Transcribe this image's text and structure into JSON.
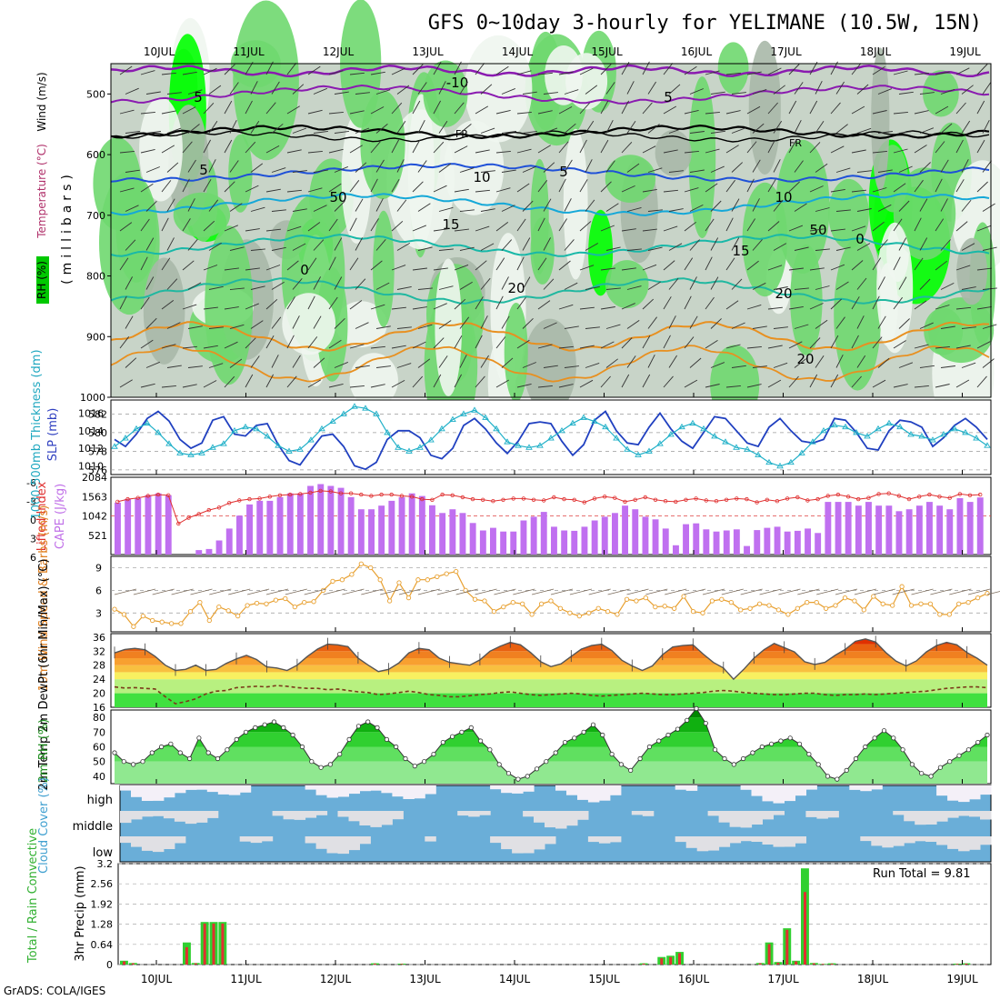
{
  "header": {
    "title": "GFS 0~10day 3-hourly for YELIMANE (10.5W, 15N)",
    "credit": "GrADS: COLA/IGES",
    "run_total_label": "Run Total = 9.81"
  },
  "chart_data": [
    {
      "id": "upper",
      "type": "heatmap",
      "days": [
        "10JUL",
        "11JUL",
        "12JUL",
        "13JUL",
        "14JUL",
        "15JUL",
        "16JUL",
        "17JUL",
        "18JUL",
        "19JUL"
      ],
      "ylabel_main": "(millibars)",
      "ylabel_wind": "Wind (m/s)",
      "ylabel_temp": "Temperature (°C)",
      "ylabel_rh": "RH (%)",
      "yticks": [
        500,
        600,
        700,
        800,
        900,
        1000
      ],
      "ylim": [
        1000,
        450
      ],
      "contour_labels": [
        "5",
        "-10",
        "5",
        "FR",
        "FR",
        "5",
        "5",
        "10",
        "10",
        "15",
        "15",
        "0",
        "0",
        "20",
        "20",
        "20",
        "50",
        "50"
      ],
      "colors": {
        "rh_dry": "#ffffff",
        "rh_mid": "#c8d4c8",
        "rh_moist": "#6fd86f",
        "rh_wet": "#00ff00",
        "purple": "#8a1ab0",
        "blue": "#1e50d8",
        "cyan": "#15a8d8",
        "teal": "#18b8a8",
        "orange": "#e89020"
      }
    },
    {
      "id": "slp",
      "type": "line",
      "ylabel_left": "1000-500mb Thickness (dm)",
      "ylabel_right": "SLP (mb)",
      "yticks_left": [
        "582",
        "580",
        "578",
        "576"
      ],
      "yticks_right": [
        "1016",
        "1014",
        "1012",
        "1010"
      ],
      "ylim_left": [
        575.5,
        583.5
      ],
      "ylim_right": [
        1009,
        1017.5
      ],
      "series": [
        {
          "values": [
            1013.0,
            1012.2,
            1013.6,
            1015.4,
            1016.2,
            1015.1,
            1013.0,
            1012.0,
            1012.6,
            1015.2,
            1015.6,
            1013.6,
            1013.4,
            1014.6,
            1014.8,
            1012.4,
            1010.6,
            1010.1,
            1011.8,
            1013.4,
            1013.6,
            1012.2,
            1010.0,
            1009.6,
            1010.4,
            1013.0,
            1014.0,
            1014.0,
            1013.2,
            1011.2,
            1010.8,
            1012.0,
            1014.6,
            1015.4,
            1014.2,
            1012.6,
            1011.4,
            1012.8,
            1014.8,
            1015.0,
            1014.8,
            1012.8,
            1011.2,
            1012.4,
            1015.2,
            1016.2,
            1014.0,
            1012.6,
            1012.4,
            1014.4,
            1016.0,
            1014.2,
            1012.8,
            1012.0,
            1013.8,
            1015.6,
            1015.4,
            1014.0,
            1012.6,
            1012.2,
            1014.4,
            1015.4,
            1014.0,
            1012.8,
            1012.6,
            1013.0,
            1015.4,
            1015.2,
            1013.8,
            1012.0,
            1011.8,
            1014.0,
            1015.2,
            1015.0,
            1014.4,
            1012.2,
            1013.2,
            1014.6,
            1015.4,
            1014.4,
            1013.0
          ]
        },
        {
          "values": [
            578.5,
            579.4,
            580.4,
            581.0,
            580.0,
            578.8,
            577.8,
            577.6,
            577.8,
            578.4,
            578.8,
            580.2,
            580.6,
            580.4,
            579.6,
            578.6,
            578.0,
            578.2,
            579.2,
            580.4,
            581.2,
            582.0,
            582.8,
            582.6,
            582.0,
            580.0,
            578.4,
            578.0,
            578.4,
            579.2,
            580.4,
            581.4,
            582.0,
            582.4,
            581.6,
            580.4,
            579.0,
            578.6,
            578.4,
            578.6,
            579.4,
            580.2,
            581.0,
            581.6,
            581.2,
            580.6,
            579.4,
            578.2,
            577.6,
            578.0,
            578.8,
            579.8,
            580.6,
            581.0,
            580.4,
            579.6,
            579.0,
            578.4,
            578.2,
            577.6,
            576.8,
            576.4,
            576.8,
            577.8,
            579.0,
            580.2,
            580.8,
            580.6,
            580.0,
            579.6,
            580.4,
            581.0,
            580.6,
            579.8,
            579.6,
            579.2,
            579.8,
            580.4,
            580.0,
            579.4,
            578.6
          ]
        }
      ]
    },
    {
      "id": "cape",
      "type": "bar",
      "ylabel_left": "Lifted Index",
      "ylabel_right": "CAPE (J/kg)",
      "yticks_left": [
        "-6",
        "-3",
        "0",
        "3",
        "6"
      ],
      "yticks_right": [
        "2084",
        "1563",
        "1042",
        "521"
      ],
      "ylim_right": [
        0,
        2084
      ],
      "series": [
        {
          "name": "CAPE",
          "values": [
            1400,
            1500,
            1520,
            1600,
            1650,
            1600,
            0,
            0,
            120,
            150,
            380,
            700,
            1050,
            1350,
            1450,
            1450,
            1550,
            1650,
            1650,
            1850,
            1900,
            1850,
            1800,
            1550,
            1220,
            1220,
            1320,
            1450,
            1550,
            1650,
            1580,
            1330,
            1120,
            1220,
            1120,
            850,
            650,
            720,
            620,
            620,
            920,
            1020,
            1150,
            750,
            650,
            640,
            750,
            920,
            1020,
            1120,
            1320,
            1220,
            1020,
            950,
            700,
            250,
            820,
            840,
            680,
            620,
            650,
            680,
            230,
            660,
            720,
            750,
            620,
            640,
            700,
            580,
            1420,
            1420,
            1420,
            1320,
            1420,
            1320,
            1320,
            1170,
            1220,
            1320,
            1420,
            1320,
            1220,
            1520,
            1420,
            1540
          ]
        },
        {
          "name": "Lifted Index",
          "values": [
            -2.2,
            -2.6,
            -2.8,
            -3.1,
            -3.3,
            -3.2,
            1.2,
            0.3,
            -0.3,
            -0.9,
            -1.3,
            -2.0,
            -2.4,
            -2.6,
            -2.7,
            -3.0,
            -3.2,
            -3.3,
            -3.4,
            -3.6,
            -3.9,
            -3.8,
            -3.5,
            -3.5,
            -3.3,
            -3.1,
            -3.3,
            -3.3,
            -3.1,
            -3.0,
            -2.6,
            -2.5,
            -3.3,
            -3.2,
            -2.9,
            -2.6,
            -2.5,
            -2.3,
            -2.5,
            -2.7,
            -2.7,
            -2.5,
            -2.4,
            -2.9,
            -2.6,
            -2.5,
            -2.1,
            -2.7,
            -3.0,
            -2.8,
            -2.2,
            -2.5,
            -2.9,
            -2.5,
            -2.3,
            -2.2,
            -2.5,
            -2.7,
            -2.4,
            -2.3,
            -2.5,
            -2.7,
            -2.6,
            -2.1,
            -2.5,
            -2.3,
            -2.7,
            -2.9,
            -2.4,
            -2.6,
            -3.1,
            -3.3,
            -3.0,
            -2.6,
            -2.8,
            -3.4,
            -3.5,
            -3.1,
            -2.6,
            -3.0,
            -3.3,
            -3.0,
            -2.8,
            -3.4,
            -3.2,
            -3.3
          ]
        }
      ]
    },
    {
      "id": "wind10m",
      "type": "line",
      "ylabel": "10m Wind Speed & Barbs (m/s)",
      "yticks": [
        "9",
        "6",
        "3"
      ],
      "ylim": [
        0.5,
        10.5
      ],
      "values": [
        3.5,
        2.8,
        1.2,
        2.6,
        2.0,
        1.8,
        1.6,
        1.6,
        3.2,
        4.4,
        2.0,
        3.8,
        3.3,
        2.6,
        4.0,
        4.3,
        4.2,
        4.7,
        4.9,
        3.8,
        4.4,
        4.5,
        6.0,
        7.2,
        7.4,
        8.1,
        9.5,
        9.0,
        7.4,
        4.6,
        7.0,
        5.0,
        7.4,
        7.4,
        7.8,
        8.2,
        8.5,
        6.0,
        4.8,
        4.6,
        3.2,
        3.8,
        4.4,
        4.2,
        2.8,
        4.2,
        4.6,
        3.6,
        3.0,
        2.6,
        3.0,
        3.6,
        3.2,
        2.8,
        4.8,
        4.6,
        5.0,
        3.8,
        3.9,
        3.6,
        5.2,
        3.2,
        3.0,
        4.6,
        4.8,
        4.4,
        3.4,
        3.6,
        4.2,
        4.0,
        3.4,
        2.8,
        3.6,
        4.4,
        4.4,
        3.6,
        4.0,
        5.0,
        4.6,
        3.4,
        5.2,
        4.2,
        4.0,
        6.5,
        4.0,
        4.2,
        4.2,
        2.8,
        2.8,
        4.2,
        4.4,
        5.0,
        5.6
      ]
    },
    {
      "id": "temp2m",
      "type": "area",
      "ylabel": "2m Temp 2m DewPt (6hr Min/Max) (°C)",
      "yticks": [
        "36",
        "32",
        "28",
        "24",
        "20",
        "16"
      ],
      "ylim": [
        16,
        37
      ],
      "series": [
        {
          "name": "2m Temp",
          "values": [
            31.5,
            32.5,
            32.8,
            32.4,
            30.5,
            28.0,
            26.5,
            26.8,
            28.0,
            26.5,
            26.8,
            28.5,
            29.8,
            30.8,
            29.6,
            27.5,
            27.2,
            26.5,
            28.0,
            30.5,
            32.6,
            34.0,
            33.8,
            33.3,
            30.0,
            28.0,
            26.2,
            26.8,
            28.6,
            31.5,
            32.8,
            32.4,
            30.0,
            28.8,
            28.4,
            28.0,
            29.5,
            32.0,
            33.4,
            34.5,
            33.8,
            31.6,
            29.0,
            27.6,
            28.4,
            30.5,
            32.6,
            33.6,
            34.0,
            32.2,
            29.4,
            27.8,
            26.5,
            27.8,
            31.0,
            33.2,
            33.6,
            33.8,
            31.2,
            28.8,
            27.2,
            24.0,
            26.8,
            30.0,
            32.4,
            34.2,
            33.0,
            31.8,
            29.0,
            28.2,
            28.8,
            30.8,
            32.5,
            34.8,
            35.5,
            34.6,
            31.6,
            29.2,
            27.8,
            29.2,
            31.8,
            33.6,
            34.5,
            33.8,
            31.6,
            30.0,
            28.0
          ]
        },
        {
          "name": "2m DewPt",
          "values": [
            21.8,
            21.5,
            21.6,
            21.4,
            21.2,
            19.0,
            17.0,
            17.6,
            18.4,
            19.8,
            20.6,
            20.8,
            21.6,
            21.8,
            22.0,
            21.8,
            22.2,
            22.0,
            21.6,
            21.4,
            21.4,
            21.0,
            21.2,
            20.8,
            20.4,
            20.2,
            19.6,
            19.8,
            20.2,
            20.6,
            20.2,
            19.6,
            19.4,
            19.0,
            19.0,
            19.3,
            19.6,
            19.8,
            20.2,
            20.4,
            20.0,
            19.6,
            19.4,
            19.6,
            19.8,
            20.0,
            19.8,
            19.4,
            19.2,
            19.4,
            19.6,
            19.8,
            20.0,
            19.8,
            19.6,
            19.6,
            19.8,
            20.0,
            20.2,
            20.6,
            20.8,
            20.6,
            20.2,
            20.0,
            19.8,
            19.6,
            19.6,
            19.8,
            20.0,
            20.0,
            19.6,
            19.4,
            19.6,
            19.6,
            19.8,
            19.6,
            19.8,
            20.0,
            20.2,
            20.4,
            20.6,
            21.0,
            21.4,
            21.6,
            21.8,
            21.8,
            21.6
          ]
        }
      ]
    },
    {
      "id": "rh2m",
      "type": "area",
      "ylabel": "2m RH (%)",
      "yticks": [
        "80",
        "70",
        "60",
        "50",
        "40"
      ],
      "ylim": [
        35,
        85
      ],
      "values": [
        56,
        50,
        48,
        50,
        56,
        60,
        62,
        56,
        52,
        66,
        56,
        52,
        58,
        65,
        70,
        73,
        75,
        77,
        73,
        68,
        60,
        50,
        46,
        48,
        55,
        65,
        74,
        77,
        73,
        65,
        60,
        52,
        47,
        50,
        55,
        63,
        67,
        70,
        73,
        64,
        58,
        48,
        42,
        38,
        40,
        45,
        50,
        56,
        63,
        66,
        70,
        75,
        68,
        55,
        48,
        44,
        52,
        60,
        64,
        68,
        72,
        78,
        86,
        76,
        58,
        52,
        48,
        52,
        56,
        60,
        62,
        64,
        66,
        62,
        55,
        48,
        40,
        38,
        44,
        52,
        60,
        66,
        71,
        66,
        58,
        48,
        42,
        40,
        46,
        50,
        54,
        58,
        63,
        68
      ]
    },
    {
      "id": "cloud",
      "type": "bar",
      "ylabel": "Cloud Cover (%)",
      "levels": [
        "high",
        "middle",
        "low"
      ]
    },
    {
      "id": "precip",
      "type": "bar",
      "ylabel": "3hr Precip (mm)",
      "ylabel_side": "Total / Rain Convective",
      "yticks": [
        "3.2",
        "2.56",
        "1.92",
        "1.28",
        "0.64",
        "0"
      ],
      "ylim": [
        0,
        3.2
      ],
      "series": [
        {
          "name": "Total",
          "values": [
            0.12,
            0.05,
            0,
            0,
            0,
            0,
            0,
            0.7,
            0.05,
            1.35,
            1.35,
            1.35,
            0,
            0,
            0,
            0,
            0,
            0,
            0,
            0,
            0,
            0,
            0,
            0,
            0,
            0,
            0,
            0,
            0.04,
            0,
            0,
            0.03,
            0,
            0,
            0,
            0,
            0,
            0,
            0,
            0,
            0,
            0,
            0,
            0,
            0,
            0,
            0,
            0,
            0,
            0,
            0,
            0,
            0,
            0,
            0,
            0,
            0,
            0,
            0.04,
            0,
            0.24,
            0.28,
            0.4,
            0,
            0,
            0,
            0,
            0,
            0,
            0,
            0,
            0.05,
            0.7,
            0.08,
            1.15,
            0.12,
            3.05,
            0.05,
            0.02,
            0.04,
            0,
            0,
            0,
            0,
            0,
            0,
            0,
            0,
            0,
            0,
            0,
            0,
            0,
            0.03,
            0.04,
            0,
            0
          ]
        },
        {
          "name": "Convective",
          "values": [
            0.1,
            0.04,
            0,
            0,
            0,
            0,
            0,
            0.55,
            0.04,
            1.3,
            1.3,
            1.3,
            0,
            0,
            0,
            0,
            0,
            0,
            0,
            0,
            0,
            0,
            0,
            0,
            0,
            0,
            0,
            0,
            0.03,
            0,
            0,
            0.02,
            0,
            0,
            0,
            0,
            0,
            0,
            0,
            0,
            0,
            0,
            0,
            0,
            0,
            0,
            0,
            0,
            0,
            0,
            0,
            0,
            0,
            0,
            0,
            0,
            0,
            0,
            0.03,
            0,
            0.2,
            0.24,
            0.36,
            0,
            0,
            0,
            0,
            0,
            0,
            0,
            0,
            0.04,
            0.65,
            0.06,
            1.1,
            0.1,
            2.3,
            0.04,
            0.02,
            0.03,
            0,
            0,
            0,
            0,
            0,
            0,
            0,
            0,
            0,
            0,
            0,
            0,
            0,
            0.02,
            0.03,
            0,
            0
          ]
        }
      ]
    }
  ]
}
